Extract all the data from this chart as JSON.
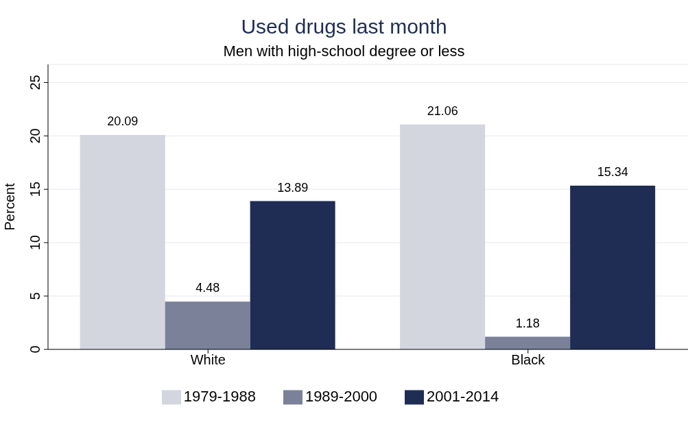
{
  "chart_data": {
    "type": "bar",
    "title": "Used drugs last month",
    "subtitle": "Men with high-school degree or less",
    "ylabel": "Percent",
    "categories": [
      "White",
      "Black"
    ],
    "series": [
      {
        "name": "1979-1988",
        "color": "#d3d5df",
        "values": [
          20.09,
          21.06
        ]
      },
      {
        "name": "1989-2000",
        "color": "#7a8199",
        "values": [
          4.48,
          1.18
        ]
      },
      {
        "name": "2001-2014",
        "color": "#1f2d54",
        "values": [
          13.89,
          15.34
        ]
      }
    ],
    "ylim": [
      0,
      26.7
    ],
    "yticks": [
      0,
      5,
      10,
      15,
      20,
      25
    ],
    "grid": "y",
    "legend": "bottom",
    "data_labels": true
  }
}
